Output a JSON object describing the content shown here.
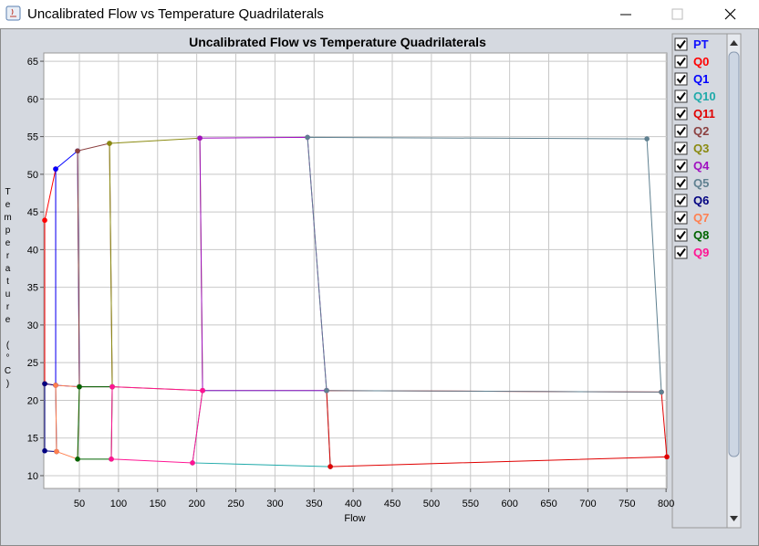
{
  "window": {
    "title": "Uncalibrated Flow vs Temperature Quadrilaterals"
  },
  "chart_data": {
    "type": "line",
    "title": "Uncalibrated Flow vs Temperature Quadrilaterals",
    "x_label": "Flow",
    "y_label": "Temperature (°C)",
    "xlim": [
      4.5,
      801
    ],
    "ylim": [
      8.3,
      66.1
    ],
    "xticks": [
      50,
      100,
      150,
      200,
      250,
      300,
      350,
      400,
      450,
      500,
      550,
      600,
      650,
      700,
      750,
      800
    ],
    "yticks": [
      10,
      15,
      20,
      25,
      30,
      35,
      40,
      45,
      50,
      55,
      60,
      65
    ],
    "grid": true,
    "legend": "right",
    "series": [
      {
        "name": "PT",
        "color": "#1010ff",
        "line": false,
        "x": [
          5.7,
          19.7,
          47.7,
          88.5,
          204,
          341.6,
          775.5,
          5.7,
          19.7,
          50,
          92,
          207.5,
          366,
          794,
          5.7,
          20.8,
          47.7,
          90.8,
          194.6,
          370.8,
          801
        ],
        "y": [
          43.9,
          50.7,
          53.1,
          54.1,
          54.8,
          54.9,
          54.7,
          22.2,
          22.0,
          21.8,
          21.8,
          21.3,
          21.3,
          21.1,
          13.3,
          13.2,
          12.2,
          12.2,
          11.7,
          11.2,
          12.5
        ]
      },
      {
        "name": "Q0",
        "color": "#ff0000",
        "x": [
          5.7,
          19.7,
          19.7,
          5.7
        ],
        "y": [
          43.9,
          50.7,
          22.0,
          22.2
        ]
      },
      {
        "name": "Q1",
        "color": "#0000ff",
        "x": [
          19.7,
          47.7,
          50,
          19.7
        ],
        "y": [
          50.7,
          53.1,
          21.8,
          22.0
        ]
      },
      {
        "name": "Q10",
        "color": "#20aaaa",
        "x": [
          207.5,
          366,
          370.8,
          194.6
        ],
        "y": [
          21.3,
          21.3,
          11.2,
          11.7
        ]
      },
      {
        "name": "Q11",
        "color": "#e00000",
        "x": [
          366,
          794,
          801,
          370.8
        ],
        "y": [
          21.3,
          21.1,
          12.5,
          11.2
        ]
      },
      {
        "name": "Q2",
        "color": "#8b4040",
        "x": [
          47.7,
          88.5,
          92,
          50
        ],
        "y": [
          53.1,
          54.1,
          21.8,
          21.8
        ]
      },
      {
        "name": "Q3",
        "color": "#8a8a10",
        "x": [
          88.5,
          204,
          207.5,
          92
        ],
        "y": [
          54.1,
          54.8,
          21.3,
          21.8
        ]
      },
      {
        "name": "Q4",
        "color": "#a010c0",
        "x": [
          204,
          341.6,
          366,
          207.5
        ],
        "y": [
          54.8,
          54.9,
          21.3,
          21.3
        ]
      },
      {
        "name": "Q5",
        "color": "#5f8090",
        "x": [
          341.6,
          775.5,
          794,
          366
        ],
        "y": [
          54.9,
          54.7,
          21.1,
          21.3
        ]
      },
      {
        "name": "Q6",
        "color": "#000080",
        "x": [
          5.7,
          19.7,
          20.8,
          5.7
        ],
        "y": [
          22.2,
          22.0,
          13.2,
          13.3
        ]
      },
      {
        "name": "Q7",
        "color": "#ff8050",
        "x": [
          19.7,
          50,
          47.7,
          20.8
        ],
        "y": [
          22.0,
          21.8,
          12.2,
          13.2
        ]
      },
      {
        "name": "Q8",
        "color": "#006400",
        "x": [
          50,
          92,
          90.8,
          47.7
        ],
        "y": [
          21.8,
          21.8,
          12.2,
          12.2
        ]
      },
      {
        "name": "Q9",
        "color": "#ff1493",
        "x": [
          92,
          207.5,
          194.6,
          90.8
        ],
        "y": [
          21.8,
          21.3,
          11.7,
          12.2
        ]
      }
    ]
  }
}
